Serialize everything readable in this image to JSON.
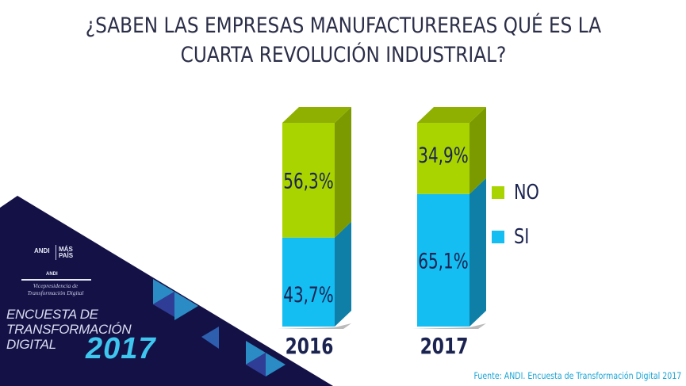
{
  "title": {
    "line1": "¿SABEN LAS EMPRESAS MANUFACTUREREAS QUÉ ES LA",
    "line2": "CUARTA REVOLUCIÓN INDUSTRIAL?"
  },
  "branding": {
    "logo_andi": "ANDI",
    "logo_mas_pais": "MÁS PAÍS",
    "logo2_andi": "ANDI",
    "vicepresidencia": "Vicepresidencia de Transformación Digital",
    "survey_title_line1": "ENCUESTA DE",
    "survey_title_line2": "TRANSFORMACIÓN",
    "survey_title_line3": "DIGITAL",
    "survey_year": "2017"
  },
  "source": "Fuente: ANDI. Encuesta de Transformación Digital 2017",
  "colors": {
    "no": "#a9d400",
    "si": "#14bdf2",
    "navy": "#141147",
    "text": "#1b2350"
  },
  "chart_data": {
    "type": "bar",
    "stacked": true,
    "style": "3d",
    "title": "¿SABEN LAS EMPRESAS MANUFACTUREREAS QUÉ ES LA CUARTA REVOLUCIÓN INDUSTRIAL?",
    "categories": [
      "2016",
      "2017"
    ],
    "series": [
      {
        "name": "SI",
        "values": [
          43.7,
          65.1
        ],
        "labels": [
          "43,7%",
          "65,1%"
        ]
      },
      {
        "name": "NO",
        "values": [
          56.3,
          34.9
        ],
        "labels": [
          "56,3%",
          "34,9%"
        ]
      }
    ],
    "legend": {
      "items": [
        "NO",
        "SI"
      ],
      "placement": "right"
    },
    "xlabel": "",
    "ylabel": "",
    "ylim": [
      0,
      100
    ],
    "grid": false
  }
}
